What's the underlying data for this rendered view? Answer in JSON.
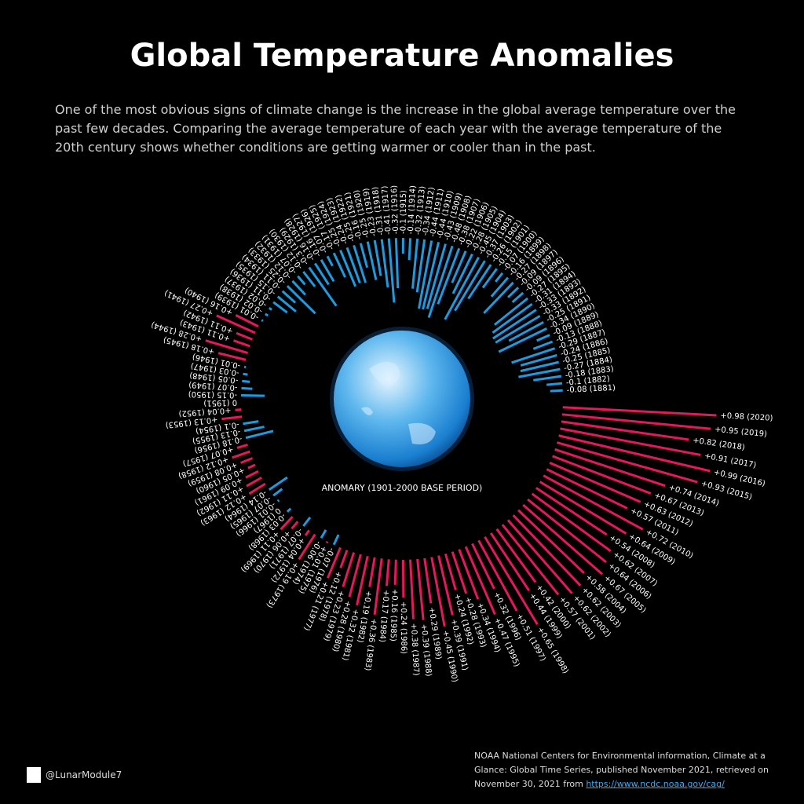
{
  "chart_data": {
    "type": "radial-bar",
    "title": "Global Temperature Anomalies",
    "subtitle": "One of the most obvious signs of climate change is the increase in the global average temperature over the past few decades. Comparing the average temperature of each year with the average temperature of the 20th century shows whether conditions are getting warmer or cooler than in the past.",
    "center_label": "ANOMARY (1901-2000 BASE PERIOD)",
    "x": [
      1881,
      1882,
      1883,
      1884,
      1885,
      1886,
      1887,
      1888,
      1889,
      1890,
      1891,
      1892,
      1893,
      1894,
      1895,
      1896,
      1897,
      1898,
      1899,
      1900,
      1901,
      1902,
      1903,
      1904,
      1905,
      1906,
      1907,
      1908,
      1909,
      1910,
      1911,
      1912,
      1913,
      1914,
      1915,
      1916,
      1917,
      1918,
      1919,
      1920,
      1921,
      1922,
      1923,
      1924,
      1925,
      1926,
      1927,
      1928,
      1929,
      1930,
      1931,
      1932,
      1933,
      1934,
      1935,
      1936,
      1937,
      1938,
      1939,
      1940,
      1941,
      1942,
      1943,
      1944,
      1945,
      1946,
      1947,
      1948,
      1949,
      1950,
      1951,
      1952,
      1953,
      1954,
      1955,
      1956,
      1957,
      1958,
      1959,
      1960,
      1961,
      1962,
      1963,
      1964,
      1965,
      1966,
      1967,
      1968,
      1969,
      1970,
      1971,
      1972,
      1973,
      1974,
      1975,
      1976,
      1977,
      1978,
      1979,
      1980,
      1981,
      1982,
      1983,
      1984,
      1985,
      1986,
      1987,
      1988,
      1989,
      1990,
      1991,
      1992,
      1993,
      1994,
      1995,
      1996,
      1997,
      1998,
      1999,
      2000,
      2001,
      2002,
      2003,
      2004,
      2005,
      2006,
      2007,
      2008,
      2009,
      2010,
      2011,
      2012,
      2013,
      2014,
      2015,
      2016,
      2017,
      2018,
      2019,
      2020
    ],
    "values": [
      -0.08,
      -0.1,
      -0.18,
      -0.27,
      -0.25,
      -0.24,
      -0.29,
      -0.13,
      -0.09,
      -0.34,
      -0.25,
      -0.33,
      -0.33,
      -0.31,
      -0.27,
      -0.09,
      -0.09,
      -0.27,
      -0.16,
      -0.07,
      -0.15,
      -0.26,
      -0.37,
      -0.45,
      -0.28,
      -0.22,
      -0.38,
      -0.48,
      -0.43,
      -0.44,
      -0.44,
      -0.34,
      -0.32,
      -0.14,
      -0.1,
      -0.32,
      -0.41,
      -0.31,
      -0.23,
      -0.25,
      -0.16,
      -0.25,
      -0.24,
      -0.25,
      -0.17,
      -0.07,
      -0.16,
      -0.16,
      -0.3,
      -0.12,
      -0.07,
      -0.12,
      -0.25,
      -0.11,
      -0.15,
      -0.11,
      -0.02,
      -0.02,
      -0.01,
      0.16,
      0.27,
      0.11,
      0.11,
      0.28,
      0.18,
      -0.01,
      -0.03,
      -0.05,
      -0.07,
      -0.15,
      0,
      0.04,
      0.13,
      -0.1,
      -0.13,
      -0.18,
      0.07,
      0.12,
      0.08,
      0.05,
      0.09,
      0.11,
      0.12,
      -0.14,
      -0.07,
      -0.01,
      0,
      -0.03,
      0.11,
      0.06,
      -0.07,
      0.04,
      0.19,
      -0.06,
      0.01,
      -0.07,
      0.21,
      0.12,
      0.23,
      0.28,
      0.32,
      0.19,
      0.36,
      0.17,
      0.16,
      0.24,
      0.38,
      0.39,
      0.29,
      0.45,
      0.39,
      0.24,
      0.28,
      0.34,
      0.47,
      0.32,
      0.51,
      0.65,
      0.44,
      0.42,
      0.57,
      0.62,
      0.62,
      0.58,
      0.67,
      0.64,
      0.62,
      0.54,
      0.64,
      0.72,
      0.57,
      0.63,
      0.67,
      0.74,
      0.93,
      0.99,
      0.91,
      0.82,
      0.95,
      0.98
    ],
    "value_labels": [
      "-0.08 (1881)",
      "-0.1 (1882)",
      "-0.18 (1883)",
      "-0.27 (1884)",
      "-0.25 (1885)",
      "-0.24 (1886)",
      "-0.29 (1887)",
      "-0.13 (1888)",
      "-0.09 (1889)",
      "-0.34 (1890)",
      "-0.25 (1891)",
      "-0.33 (1892)",
      "-0.33 (1893)",
      "-0.31 (1894)",
      "-0.27 (1895)",
      "-0.09 (1896)",
      "-0.09 (1897)",
      "-0.27 (1898)",
      "-0.16 (1899)",
      "-0.07 (1900)",
      "-0.15 (1901)",
      "-0.26 (1902)",
      "-0.37 (1903)",
      "-0.45 (1904)",
      "-0.28 (1905)",
      "-0.22 (1906)",
      "-0.38 (1907)",
      "-0.48 (1908)",
      "-0.43 (1909)",
      "-0.44 (1910)",
      "-0.44 (1911)",
      "-0.34 (1912)",
      "-0.32 (1913)",
      "-0.14 (1914)",
      "-0.1 (1915)",
      "-0.32 (1916)",
      "-0.41 (1917)",
      "-0.31 (1918)",
      "-0.23 (1919)",
      "-0.25 (1920)",
      "-0.16 (1921)",
      "-0.25 (1922)",
      "-0.24 (1923)",
      "-0.25 (1924)",
      "-0.17 (1925)",
      "-0.07 (1926)",
      "-0.16 (1927)",
      "-0.16 (1928)",
      "-0.3 (1929)",
      "-0.12 (1930)",
      "-0.07 (1931)",
      "-0.12 (1932)",
      "-0.25 (1933)",
      "-0.11 (1934)",
      "-0.15 (1935)",
      "-0.11 (1936)",
      "-0.02 (1937)",
      "-0.02 (1938)",
      "-0.01 (1939)",
      "+0.16 (1940)",
      "+0.27 (1941)",
      "+0.11 (1942)",
      "+0.11 (1943)",
      "+0.28 (1944)",
      "+0.18 (1945)",
      "-0.01 (1946)",
      "-0.03 (1947)",
      "-0.05 (1948)",
      "-0.07 (1949)",
      "-0.15 (1950)",
      "0 (1951)",
      "+0.04 (1952)",
      "+0.13 (1953)",
      "-0.1 (1954)",
      "-0.13 (1955)",
      "-0.18 (1956)",
      "+0.07 (1957)",
      "+0.12 (1958)",
      "+0.08 (1959)",
      "+0.05 (1960)",
      "+0.09 (1961)",
      "+0.11 (1962)",
      "+0.12 (1963)",
      "-0.14 (1964)",
      "-0.07 (1965)",
      "-0.01 (1966)",
      "0 (1967)",
      "-0.03 (1968)",
      "+0.11 (1969)",
      "+0.06 (1970)",
      "-0.07 (1971)",
      "+0.04 (1972)",
      "+0.19 (1973)",
      "-0.06 (1974)",
      "+0.01 (1975)",
      "-0.07 (1976)",
      "+0.21 (1977)",
      "+0.12 (1978)",
      "+0.23 (1979)",
      "+0.28 (1980)",
      "+0.32 (1981)",
      "+0.19 (1982)",
      "+0.36 (1983)",
      "+0.17 (1984)",
      "+0.16 (1985)",
      "+0.24 (1986)",
      "+0.38 (1987)",
      "+0.39 (1988)",
      "+0.29 (1989)",
      "+0.45 (1990)",
      "+0.39 (1991)",
      "+0.24 (1992)",
      "+0.28 (1993)",
      "+0.34 (1994)",
      "+0.47 (1995)",
      "+0.32 (1996)",
      "+0.51 (1997)",
      "+0.65 (1998)",
      "+0.44 (1999)",
      "+0.42 (2000)",
      "+0.57 (2001)",
      "+0.62 (2002)",
      "+0.62 (2003)",
      "+0.58 (2004)",
      "+0.67 (2005)",
      "+0.64 (2006)",
      "+0.62 (2007)",
      "+0.54 (2008)",
      "+0.64 (2009)",
      "+0.72 (2010)",
      "+0.57 (2011)",
      "+0.63 (2012)",
      "+0.67 (2013)",
      "+0.74 (2014)",
      "+0.93 (2015)",
      "+0.99 (2016)",
      "+0.91 (2017)",
      "+0.82 (2018)",
      "+0.95 (2019)",
      "+0.98 (2020)"
    ],
    "xlim": [
      1881,
      2020
    ],
    "ylim": [
      -1,
      1
    ],
    "color_positive": "#e8175d",
    "color_negative": "#1e9be0"
  },
  "footer": {
    "credit": "@LunarModule7",
    "source": "NOAA National Centers for Environmental information, Climate at a Glance: Global Time Series, published November 2021, retrieved on November 30, 2021 from",
    "source_link": "https://www.ncdc.noaa.gov/cag/"
  }
}
